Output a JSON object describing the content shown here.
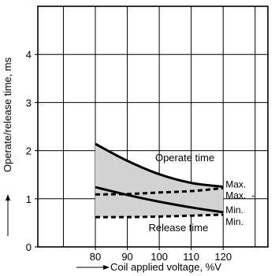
{
  "chart_data": {
    "type": "line",
    "title": "",
    "xlabel": "Coil applied voltage, %V",
    "ylabel": "Operate/release time, ms",
    "xlim": [
      62,
      134
    ],
    "ylim": [
      0,
      5
    ],
    "xticks": [
      80,
      90,
      100,
      110,
      120
    ],
    "yticks": [
      0,
      1,
      2,
      3,
      4
    ],
    "xtick_labels": [
      "80",
      "90",
      "100",
      "110",
      "120"
    ],
    "ytick_labels": [
      "0",
      "1",
      "2",
      "3",
      "4"
    ],
    "grid": true,
    "series": [
      {
        "name": "Operate time Max.",
        "style": "solid",
        "x": [
          80,
          90,
          100,
          110,
          120
        ],
        "y": [
          2.14,
          1.79,
          1.51,
          1.33,
          1.25
        ]
      },
      {
        "name": "Operate time Min.",
        "style": "dashed",
        "x": [
          80,
          90,
          100,
          110,
          120
        ],
        "y": [
          1.09,
          1.1,
          1.13,
          1.16,
          1.22
        ]
      },
      {
        "name": "Release time Max.",
        "style": "solid",
        "x": [
          80,
          90,
          100,
          110,
          120
        ],
        "y": [
          1.24,
          1.08,
          0.94,
          0.82,
          0.72
        ]
      },
      {
        "name": "Release time Min.",
        "style": "dashed",
        "x": [
          80,
          90,
          100,
          110,
          120
        ],
        "y": [
          0.62,
          0.62,
          0.63,
          0.65,
          0.67
        ]
      }
    ],
    "band_fill": "#d2d2d2",
    "annotations": [
      {
        "text": "Operate time",
        "x": 108,
        "y": 1.86
      },
      {
        "text": "Release time",
        "x": 106,
        "y": 0.41
      }
    ],
    "right_labels": [
      "Max.",
      "Max.",
      "Min.",
      "Min."
    ],
    "right_label_suffix": "-"
  }
}
